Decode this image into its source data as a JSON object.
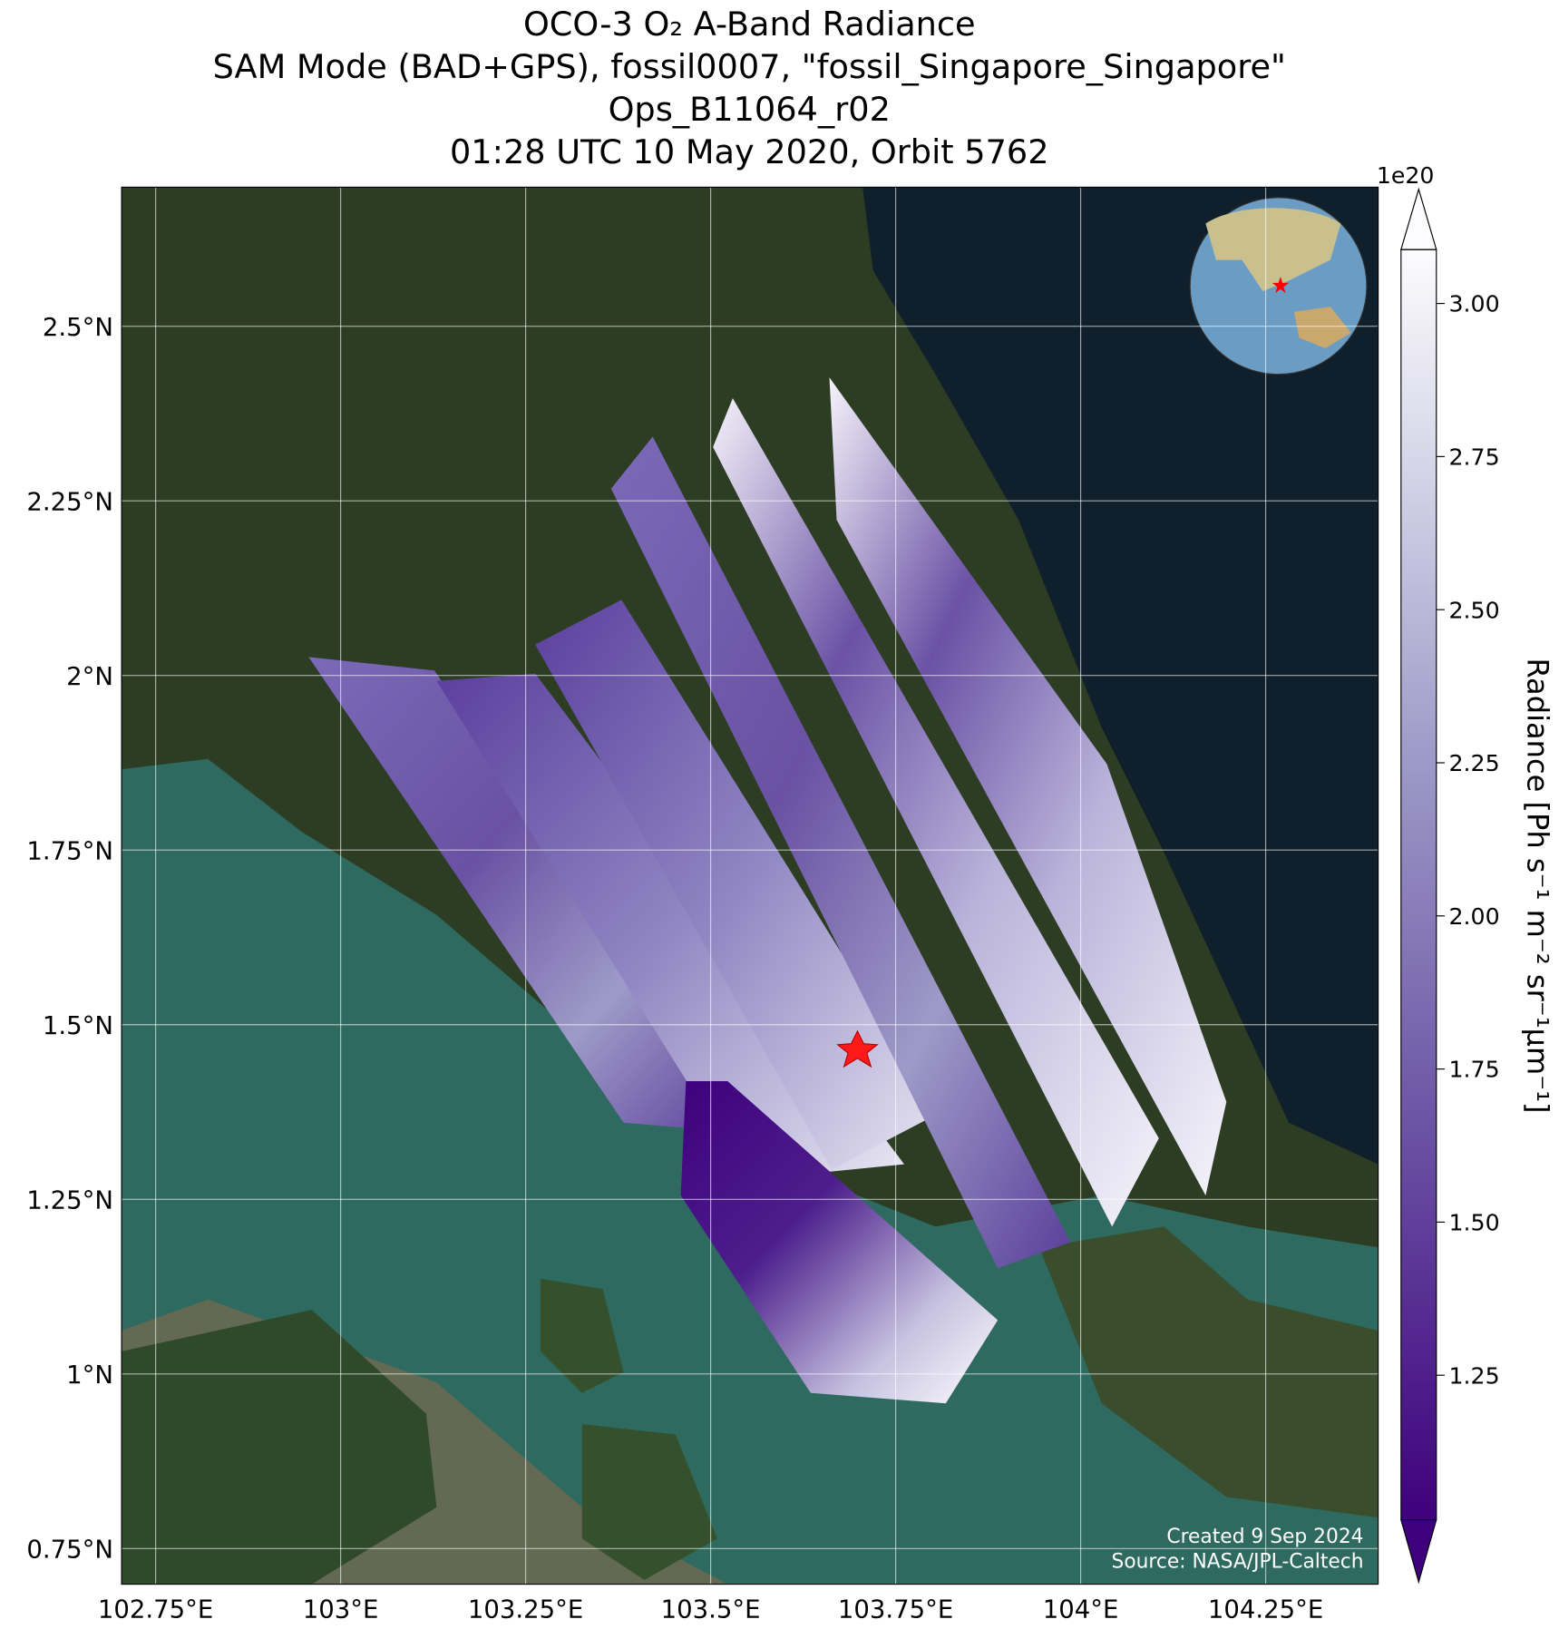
{
  "chart_data": {
    "type": "map",
    "title": [
      "OCO-3 O₂ A-Band Radiance",
      "SAM Mode (BAD+GPS), fossil0007, \"fossil_Singapore_Singapore\"",
      "Ops_B11064_r02",
      "01:28 UTC 10 May 2020, Orbit 5762"
    ],
    "xlim": [
      102.704,
      104.402
    ],
    "ylim": [
      0.699,
      2.699
    ],
    "xticks": [
      {
        "value": 102.75,
        "label": "102.75°E"
      },
      {
        "value": 103,
        "label": "103°E"
      },
      {
        "value": 103.25,
        "label": "103.25°E"
      },
      {
        "value": 103.5,
        "label": "103.5°E"
      },
      {
        "value": 103.75,
        "label": "103.75°E"
      },
      {
        "value": 104,
        "label": "104°E"
      },
      {
        "value": 104.25,
        "label": "104.25°E"
      }
    ],
    "yticks": [
      {
        "value": 0.75,
        "label": "0.75°N"
      },
      {
        "value": 1,
        "label": "1°N"
      },
      {
        "value": 1.25,
        "label": "1.25°N"
      },
      {
        "value": 1.5,
        "label": "1.5°N"
      },
      {
        "value": 1.75,
        "label": "1.75°N"
      },
      {
        "value": 2,
        "label": "2°N"
      },
      {
        "value": 2.25,
        "label": "2.25°N"
      },
      {
        "value": 2.5,
        "label": "2.5°N"
      }
    ],
    "grid": true,
    "colorbar": {
      "label": "Radiance [Ph s⁻¹ m⁻² sr⁻¹μm⁻¹]",
      "offset_label": "1e20",
      "clim": [
        1.014,
        3.088
      ],
      "ticks": [
        {
          "value": 1.25,
          "label": "1.25"
        },
        {
          "value": 1.5,
          "label": "1.50"
        },
        {
          "value": 1.75,
          "label": "1.75"
        },
        {
          "value": 2,
          "label": "2.00"
        },
        {
          "value": 2.25,
          "label": "2.25"
        },
        {
          "value": 2.5,
          "label": "2.50"
        },
        {
          "value": 2.75,
          "label": "2.75"
        },
        {
          "value": 3,
          "label": "3.00"
        }
      ]
    },
    "credits": [
      "Created 9 Sep 2024",
      "Source: NASA/JPL-Caltech"
    ]
  }
}
